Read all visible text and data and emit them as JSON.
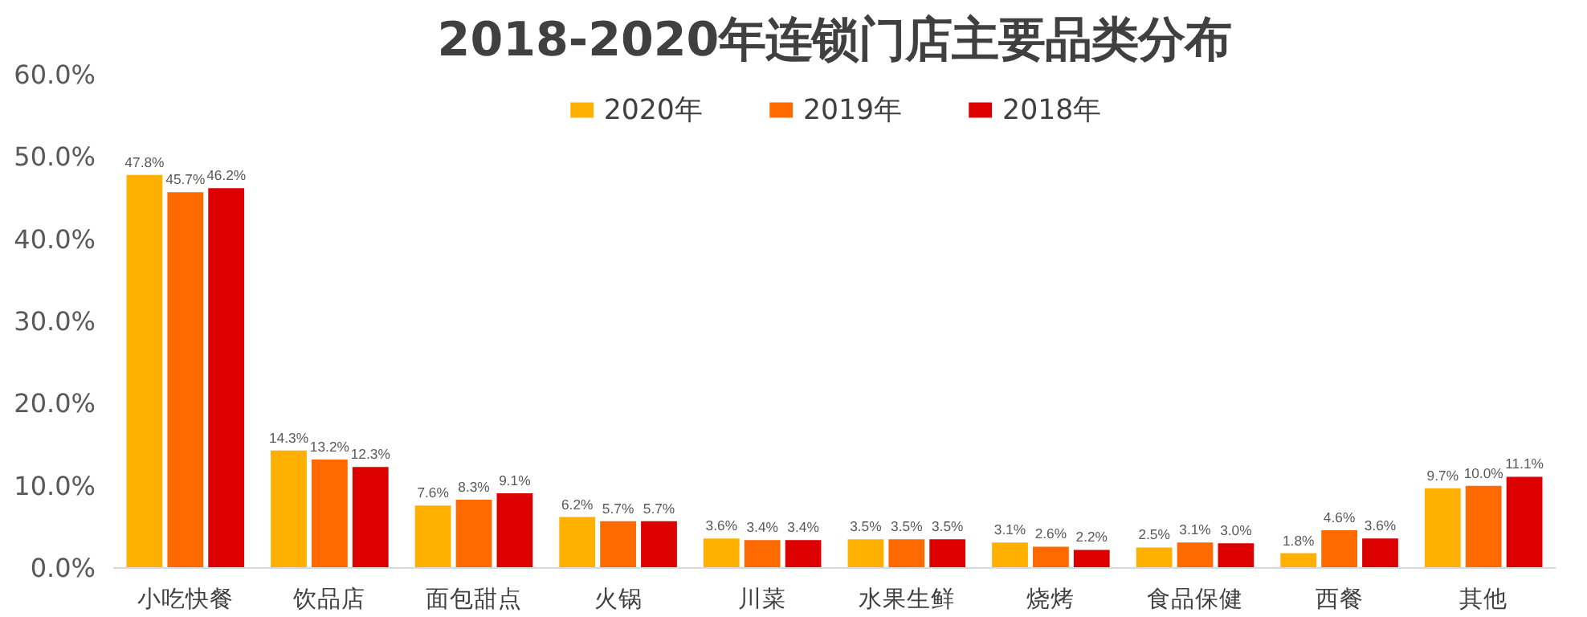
{
  "chart_data": {
    "type": "bar",
    "title": "2018-2020年连锁门店主要品类分布",
    "categories": [
      "小吃快餐",
      "饮品店",
      "面包甜点",
      "火锅",
      "川菜",
      "水果生鲜",
      "烧烤",
      "食品保健",
      "西餐",
      "其他"
    ],
    "series": [
      {
        "name": "2020年",
        "color": "#ffb000",
        "values": [
          47.8,
          14.3,
          7.6,
          6.2,
          3.6,
          3.5,
          3.1,
          2.5,
          1.8,
          9.7
        ],
        "value_labels": [
          "47.8%",
          "14.3%",
          "7.6%",
          "6.2%",
          "3.6%",
          "3.5%",
          "3.1%",
          "2.5%",
          "1.8%",
          "9.7%"
        ]
      },
      {
        "name": "2019年",
        "color": "#ff6a00",
        "values": [
          45.7,
          13.2,
          8.3,
          5.7,
          3.4,
          3.5,
          2.6,
          3.1,
          4.6,
          10.0
        ],
        "value_labels": [
          "45.7%",
          "13.2%",
          "8.3%",
          "5.7%",
          "3.4%",
          "3.5%",
          "2.6%",
          "3.1%",
          "4.6%",
          "10.0%"
        ]
      },
      {
        "name": "2018年",
        "color": "#dc0000",
        "values": [
          46.2,
          12.3,
          9.1,
          5.7,
          3.4,
          3.5,
          2.2,
          3.0,
          3.6,
          11.1
        ],
        "value_labels": [
          "46.2%",
          "12.3%",
          "9.1%",
          "5.7%",
          "3.4%",
          "3.5%",
          "2.2%",
          "3.0%",
          "3.6%",
          "11.1%"
        ]
      }
    ],
    "ylim": [
      0,
      60
    ],
    "yticks": [
      {
        "value": 0,
        "label": "0.0%"
      },
      {
        "value": 10,
        "label": "10.0%"
      },
      {
        "value": 20,
        "label": "20.0%"
      },
      {
        "value": 30,
        "label": "30.0%"
      },
      {
        "value": 40,
        "label": "40.0%"
      },
      {
        "value": 50,
        "label": "50.0%"
      },
      {
        "value": 60,
        "label": "60.0%"
      }
    ],
    "grid": false,
    "legend": "top"
  }
}
